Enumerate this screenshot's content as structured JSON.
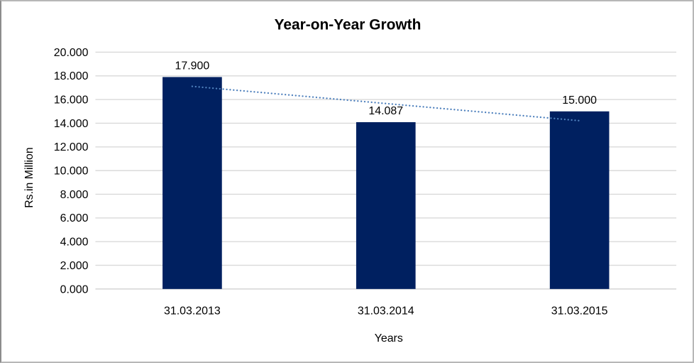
{
  "chart_data": {
    "type": "bar",
    "title": "Year-on-Year Growth",
    "xlabel": "Years",
    "ylabel": "Rs.in Million",
    "categories": [
      "31.03.2013",
      "31.03.2014",
      "31.03.2015"
    ],
    "series": [
      {
        "name": "Year-on-Year Growth",
        "values": [
          17.9,
          14.087,
          15.0
        ]
      }
    ],
    "data_labels": [
      "17.900",
      "14.087",
      "15.000"
    ],
    "ylim": [
      0,
      20
    ],
    "ytick_step": 2,
    "ytick_decimals": 3,
    "grid": true,
    "legend": false,
    "trendline": {
      "type": "linear",
      "style": "dotted"
    },
    "colors": {
      "bar": "#002060",
      "title": "#ff0000",
      "trendline": "#4f81bd",
      "gridline": "#d9d9d9",
      "axis_line": "#d0d0d0",
      "text": "#000000"
    }
  }
}
